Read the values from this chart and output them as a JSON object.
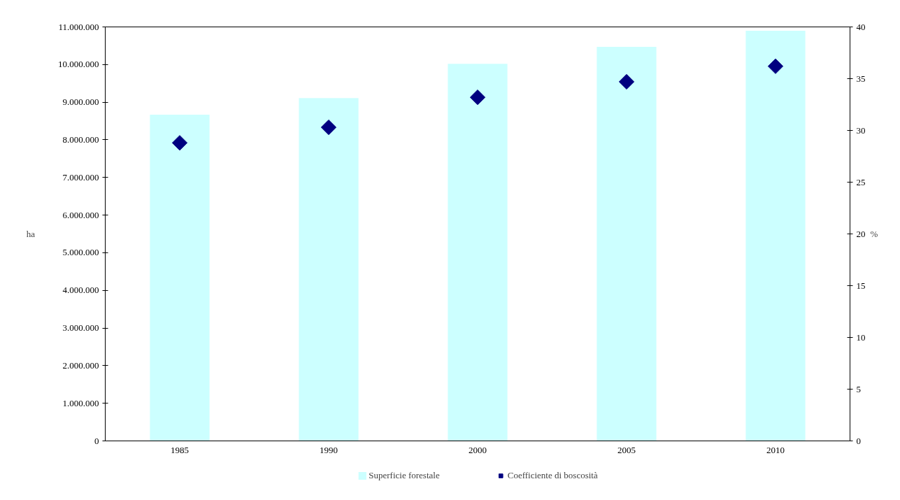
{
  "chart_data": {
    "type": "bar",
    "categories": [
      "1985",
      "1990",
      "2000",
      "2005",
      "2010"
    ],
    "ylabel": "ha",
    "y2label": "%",
    "series": [
      {
        "name": "Superficie forestale",
        "color": "#ccffff",
        "values": [
          8670000,
          9110000,
          10020000,
          10470000,
          10900000
        ]
      },
      {
        "name": "Coefficiente di boscosità",
        "color": "#000080",
        "type": "scatter",
        "axis": "y2",
        "marker": "diamond",
        "values": [
          28.8,
          30.3,
          33.2,
          34.7,
          36.2
        ]
      }
    ],
    "ylim": [
      0,
      11000000
    ],
    "yticks": [
      0,
      {
        "value": 1000000,
        "label": "1.000.000"
      },
      {
        "value": 2000000,
        "label": "2.000.000"
      },
      {
        "value": 3000000,
        "label": "3.000.000"
      },
      {
        "value": 4000000,
        "label": "4.000.000"
      },
      {
        "value": 5000000,
        "label": "5.000.000"
      },
      {
        "value": 6000000,
        "label": "6.000.000"
      },
      {
        "value": 7000000,
        "label": "7.000.000"
      },
      {
        "value": 8000000,
        "label": "8.000.000"
      },
      {
        "value": 9000000,
        "label": "9.000.000"
      },
      {
        "value": 10000000,
        "label": "10.000.000"
      },
      {
        "value": 11000000,
        "label": "11.000.000"
      }
    ],
    "y2lim": [
      0,
      40
    ],
    "y2ticks": [
      0,
      5,
      10,
      15,
      20,
      25,
      30,
      35,
      40
    ],
    "legend": "bottom"
  }
}
